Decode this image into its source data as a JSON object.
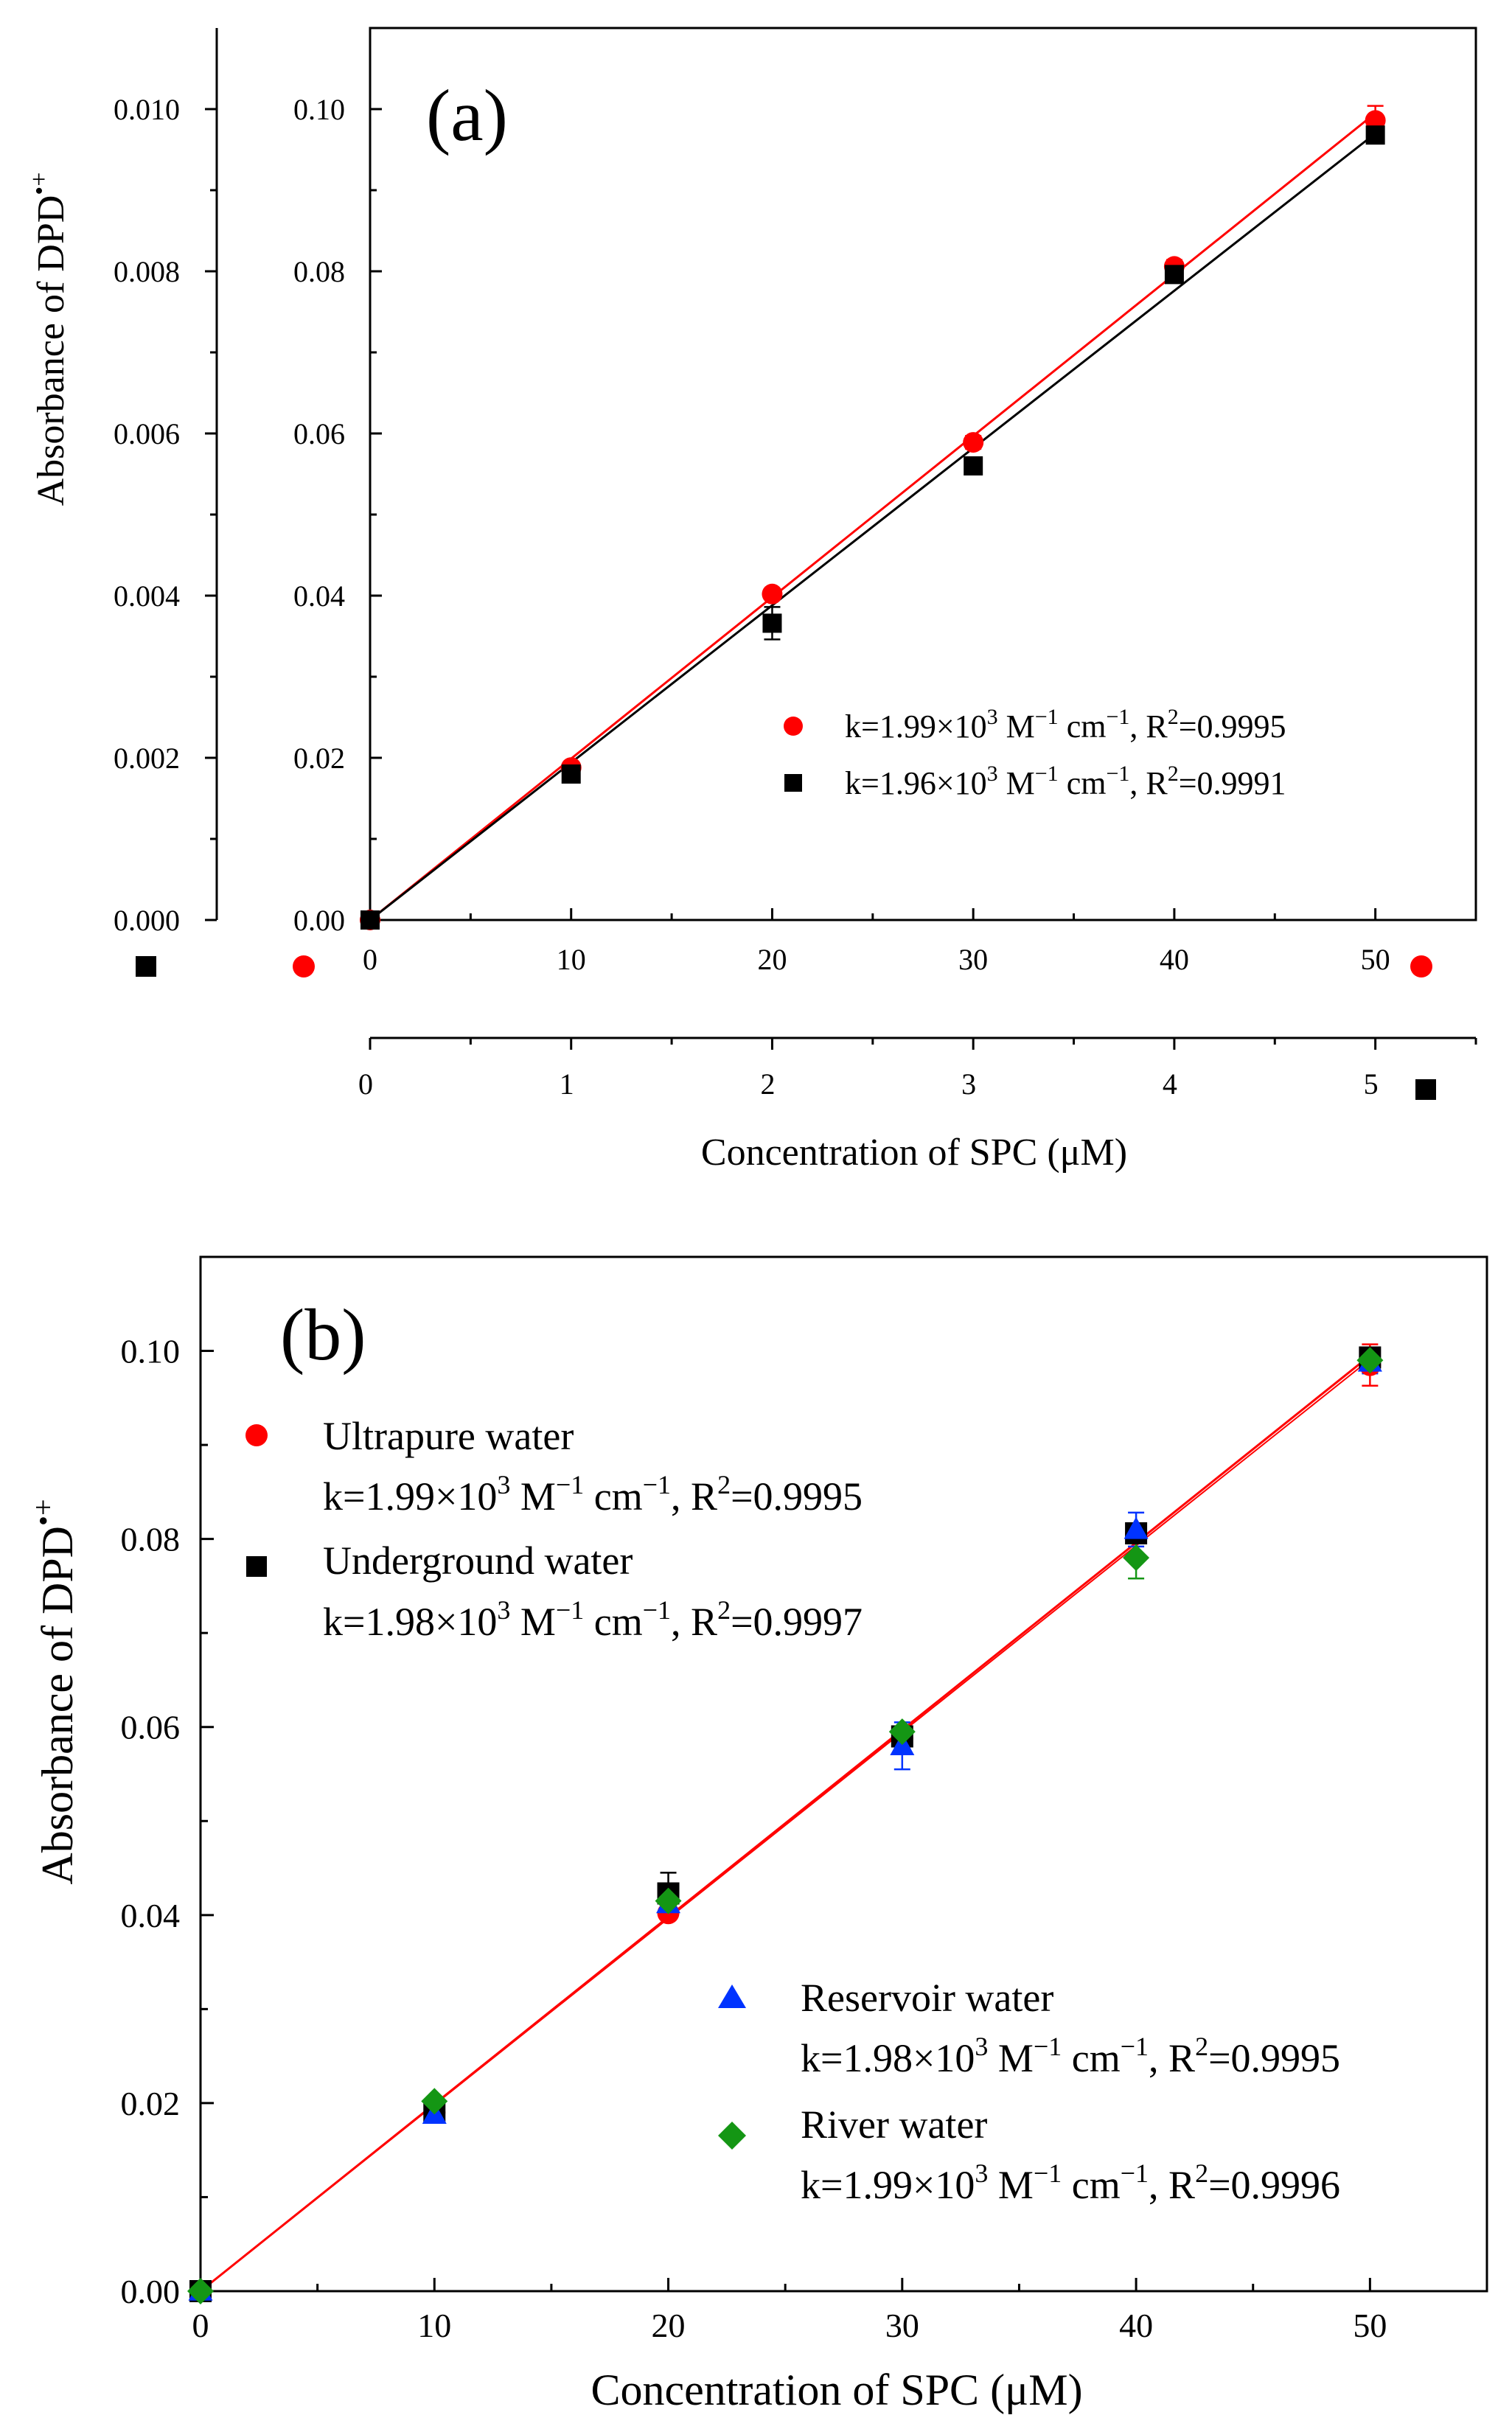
{
  "chart_data": [
    {
      "panel": "(a)",
      "type": "scatter",
      "title": "",
      "ylabel": "Absorbance of DPD•+",
      "ylabel_main": "Absorbance of ",
      "ylabel_species": "DPD",
      "ylabel_sup": "•+",
      "xlabel": "Concentration of SPC (μM)",
      "x_top_ticks": [
        "0",
        "10",
        "20",
        "30",
        "40",
        "50"
      ],
      "x_bottom_ticks": [
        "0",
        "1",
        "2",
        "3",
        "4",
        "5"
      ],
      "y_inner_ticks": [
        "0.00",
        "0.02",
        "0.04",
        "0.06",
        "0.08",
        "0.10"
      ],
      "y_outer_ticks": [
        "0.000",
        "0.002",
        "0.004",
        "0.006",
        "0.008",
        "0.010"
      ],
      "xlim_top": [
        0,
        55
      ],
      "xlim_bottom": [
        0,
        5.5
      ],
      "ylim_inner": [
        0,
        0.11
      ],
      "ylim_outer": [
        0,
        0.011
      ],
      "series": [
        {
          "name": "red circles",
          "axis": "top",
          "marker": "circle",
          "color": "#ff0000",
          "legend": {
            "k": "k=1.99×10",
            "exp": "3",
            "unit1": " M",
            "unit1exp": "−1",
            "unit2": " cm",
            "unit2exp": "−1",
            "r": ", R",
            "rexp": "2",
            "rval": "=0.9995"
          },
          "x": [
            0,
            10,
            20,
            30,
            40,
            50
          ],
          "y": [
            0.0,
            0.0188,
            0.0402,
            0.0589,
            0.0806,
            0.0986
          ],
          "err": [
            0.0,
            0.0005,
            0.0005,
            0.0008,
            0.0008,
            0.0018
          ],
          "fit": [
            [
              0,
              0.0
            ],
            [
              50,
              0.0995
            ]
          ]
        },
        {
          "name": "black squares",
          "axis": "bottom",
          "marker": "square",
          "color": "#000000",
          "legend": {
            "k": "k=1.96×10",
            "exp": "3",
            "unit1": " M",
            "unit1exp": "−1",
            "unit2": " cm",
            "unit2exp": "−1",
            "r": ", R",
            "rexp": "2",
            "rval": "=0.9991"
          },
          "x": [
            0,
            1,
            2,
            3,
            4,
            5
          ],
          "y": [
            0.0,
            0.0018,
            0.00366,
            0.0056,
            0.00796,
            0.00968
          ],
          "err": [
            0.0,
            0.0001,
            0.0002,
            0.0001,
            0.0001,
            0.0001
          ],
          "fit": [
            [
              0,
              0.0
            ],
            [
              5,
              0.0097
            ]
          ]
        }
      ]
    },
    {
      "panel": "(b)",
      "type": "scatter",
      "title": "",
      "ylabel": "Absorbance of DPD•+",
      "ylabel_main": "Absorbance of ",
      "ylabel_species": "DPD",
      "ylabel_sup": "•+",
      "xlabel": "Concentration of SPC (μM)",
      "x_ticks": [
        "0",
        "10",
        "20",
        "30",
        "40",
        "50"
      ],
      "y_ticks": [
        "0.00",
        "0.02",
        "0.04",
        "0.06",
        "0.08",
        "0.10"
      ],
      "xlim": [
        0,
        55
      ],
      "ylim": [
        0,
        0.11
      ],
      "series": [
        {
          "name": "Ultrapure water",
          "marker": "circle",
          "color": "#ff0000",
          "legend": {
            "k": "k=1.99×10",
            "exp": "3",
            "unit1": " M",
            "unit1exp": "−1",
            "unit2": " cm",
            "unit2exp": "−1",
            "r": ", R",
            "rexp": "2",
            "rval": "=0.9995"
          },
          "x": [
            0,
            10,
            20,
            30,
            40,
            50
          ],
          "y": [
            0.0,
            0.019,
            0.0402,
            0.0588,
            0.0806,
            0.0985
          ],
          "err": [
            0.0,
            0.0005,
            0.0005,
            0.0008,
            0.0008,
            0.0022
          ]
        },
        {
          "name": "Underground water",
          "marker": "square",
          "color": "#000000",
          "legend": {
            "k": "k=1.98×10",
            "exp": "3",
            "unit1": " M",
            "unit1exp": "−1",
            "unit2": " cm",
            "unit2exp": "−1",
            "r": ", R",
            "rexp": "2",
            "rval": "=0.9997"
          },
          "x": [
            0,
            10,
            20,
            30,
            40,
            50
          ],
          "y": [
            0.0,
            0.019,
            0.0423,
            0.059,
            0.0806,
            0.0993
          ],
          "err": [
            0.0,
            0.0004,
            0.0022,
            0.0006,
            0.0008,
            0.0006
          ]
        },
        {
          "name": "Reservoir water",
          "marker": "triangle",
          "color": "#0033ff",
          "legend": {
            "k": "k=1.98×10",
            "exp": "3",
            "unit1": " M",
            "unit1exp": "−1",
            "unit2": " cm",
            "unit2exp": "−1",
            "r": ", R",
            "rexp": "2",
            "rval": "=0.9995"
          },
          "x": [
            0,
            10,
            20,
            30,
            40,
            50
          ],
          "y": [
            0.0,
            0.0188,
            0.0412,
            0.058,
            0.081,
            0.0988
          ],
          "err": [
            0.0,
            0.0005,
            0.0012,
            0.0025,
            0.0018,
            0.0012
          ]
        },
        {
          "name": "River water",
          "marker": "diamond",
          "color": "#149614",
          "legend": {
            "k": "k=1.99×10",
            "exp": "3",
            "unit1": " M",
            "unit1exp": "−1",
            "unit2": " cm",
            "unit2exp": "−1",
            "r": ", R",
            "rexp": "2",
            "rval": "=0.9996"
          },
          "x": [
            0,
            10,
            20,
            30,
            40,
            50
          ],
          "y": [
            0.0,
            0.0202,
            0.0415,
            0.0595,
            0.078,
            0.099
          ],
          "err": [
            0.0,
            0.0004,
            0.001,
            0.0005,
            0.0022,
            0.0008
          ]
        }
      ],
      "fit": {
        "color": "#ff0000",
        "points": [
          [
            0,
            0.0
          ],
          [
            50,
            0.0995
          ]
        ]
      }
    }
  ]
}
